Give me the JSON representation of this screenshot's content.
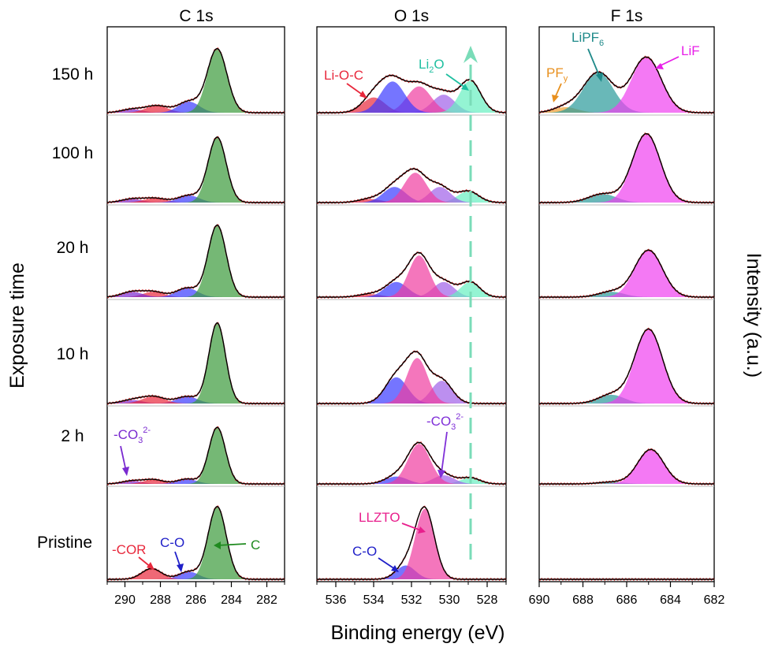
{
  "figure": {
    "xlabel": "Binding energy (eV)",
    "ylabel": "Exposure time",
    "right_label": "Intensity (a.u.)",
    "rows": [
      "150 h",
      "100 h",
      "20 h",
      "10 h",
      "2 h",
      "Pristine"
    ]
  },
  "chart_data": [
    {
      "type": "area",
      "title": "C 1s",
      "xlabel": "Binding energy (eV)",
      "xlim": [
        291,
        281
      ],
      "xticks": [
        290,
        288,
        286,
        284,
        282
      ],
      "components": [
        {
          "name": "C",
          "color": "#3a9a3a"
        },
        {
          "name": "C-O",
          "color": "#3a3aff"
        },
        {
          "name": "-COR",
          "color": "#e8283c"
        },
        {
          "name": "-CO3 2-",
          "color": "#7a2ad0"
        }
      ],
      "series": [
        {
          "name": "150 h",
          "peaks": [
            {
              "component": "C",
              "center": 284.8,
              "fwhm": 1.3,
              "height": 0.92
            },
            {
              "component": "C-O",
              "center": 286.4,
              "fwhm": 1.4,
              "height": 0.16
            },
            {
              "component": "-COR",
              "center": 288.2,
              "fwhm": 1.5,
              "height": 0.1
            },
            {
              "component": "-CO3 2-",
              "center": 289.6,
              "fwhm": 1.4,
              "height": 0.05
            }
          ]
        },
        {
          "name": "100 h",
          "peaks": [
            {
              "component": "C",
              "center": 284.8,
              "fwhm": 1.2,
              "height": 0.92
            },
            {
              "component": "C-O",
              "center": 286.4,
              "fwhm": 1.4,
              "height": 0.1
            },
            {
              "component": "-COR",
              "center": 288.3,
              "fwhm": 1.5,
              "height": 0.06
            },
            {
              "component": "-CO3 2-",
              "center": 289.6,
              "fwhm": 1.4,
              "height": 0.05
            }
          ]
        },
        {
          "name": "20 h",
          "peaks": [
            {
              "component": "C",
              "center": 284.8,
              "fwhm": 1.2,
              "height": 0.95
            },
            {
              "component": "C-O",
              "center": 286.5,
              "fwhm": 1.4,
              "height": 0.12
            },
            {
              "component": "-COR",
              "center": 288.4,
              "fwhm": 1.4,
              "height": 0.07
            },
            {
              "component": "-CO3 2-",
              "center": 289.6,
              "fwhm": 1.4,
              "height": 0.07
            }
          ]
        },
        {
          "name": "10 h",
          "peaks": [
            {
              "component": "C",
              "center": 284.8,
              "fwhm": 1.1,
              "height": 0.92
            },
            {
              "component": "C-O",
              "center": 286.5,
              "fwhm": 1.4,
              "height": 0.08
            },
            {
              "component": "-COR",
              "center": 288.4,
              "fwhm": 1.5,
              "height": 0.08
            },
            {
              "component": "-CO3 2-",
              "center": 289.6,
              "fwhm": 1.4,
              "height": 0.04
            }
          ]
        },
        {
          "name": "2 h",
          "peaks": [
            {
              "component": "C",
              "center": 284.8,
              "fwhm": 1.1,
              "height": 0.92
            },
            {
              "component": "C-O",
              "center": 286.5,
              "fwhm": 1.3,
              "height": 0.08
            },
            {
              "component": "-COR",
              "center": 288.4,
              "fwhm": 1.3,
              "height": 0.07
            },
            {
              "component": "-CO3 2-",
              "center": 289.6,
              "fwhm": 1.3,
              "height": 0.05
            }
          ]
        },
        {
          "name": "Pristine",
          "peaks": [
            {
              "component": "C",
              "center": 284.8,
              "fwhm": 1.2,
              "height": 0.95
            },
            {
              "component": "C-O",
              "center": 286.4,
              "fwhm": 1.3,
              "height": 0.1
            },
            {
              "component": "-COR",
              "center": 288.5,
              "fwhm": 1.3,
              "height": 0.14
            }
          ]
        }
      ],
      "annotations": [
        {
          "text": "-CO",
          "sub": "3",
          "sup": "2-",
          "row": "2 h",
          "color": "#7a2ad0"
        },
        {
          "text": "-COR",
          "row": "Pristine",
          "color": "#e8283c"
        },
        {
          "text": "C-O",
          "row": "Pristine",
          "color": "#1f1fc8"
        },
        {
          "text": "C",
          "row": "Pristine",
          "color": "#1f8a1f"
        }
      ]
    },
    {
      "type": "area",
      "title": "O 1s",
      "xlabel": "Binding energy (eV)",
      "xlim": [
        537,
        527
      ],
      "xticks": [
        536,
        534,
        532,
        530,
        528
      ],
      "dashed_marker": 528.9,
      "components": [
        {
          "name": "Li-O-C",
          "color": "#e8283c"
        },
        {
          "name": "C-O",
          "color": "#3a3aff"
        },
        {
          "name": "LLZTO",
          "color": "#f03ca0"
        },
        {
          "name": "-CO3 2-",
          "color": "#a060e8"
        },
        {
          "name": "Li2O",
          "color": "#66f0c0"
        }
      ],
      "series": [
        {
          "name": "150 h",
          "peaks": [
            {
              "component": "Li-O-C",
              "center": 534.0,
              "fwhm": 1.4,
              "height": 0.22
            },
            {
              "component": "C-O",
              "center": 533.0,
              "fwhm": 1.5,
              "height": 0.45
            },
            {
              "component": "LLZTO",
              "center": 531.6,
              "fwhm": 1.5,
              "height": 0.38
            },
            {
              "component": "-CO3 2-",
              "center": 530.3,
              "fwhm": 1.4,
              "height": 0.26
            },
            {
              "component": "Li2O",
              "center": 528.9,
              "fwhm": 1.3,
              "height": 0.46
            }
          ]
        },
        {
          "name": "100 h",
          "peaks": [
            {
              "component": "Li-O-C",
              "center": 534.2,
              "fwhm": 1.4,
              "height": 0.05
            },
            {
              "component": "C-O",
              "center": 532.9,
              "fwhm": 1.4,
              "height": 0.22
            },
            {
              "component": "LLZTO",
              "center": 531.8,
              "fwhm": 1.4,
              "height": 0.42
            },
            {
              "component": "-CO3 2-",
              "center": 530.5,
              "fwhm": 1.3,
              "height": 0.22
            },
            {
              "component": "Li2O",
              "center": 529.0,
              "fwhm": 1.3,
              "height": 0.16
            }
          ]
        },
        {
          "name": "20 h",
          "peaks": [
            {
              "component": "Li-O-C",
              "center": 534.2,
              "fwhm": 1.4,
              "height": 0.04
            },
            {
              "component": "C-O",
              "center": 532.8,
              "fwhm": 1.4,
              "height": 0.2
            },
            {
              "component": "LLZTO",
              "center": 531.6,
              "fwhm": 1.3,
              "height": 0.55
            },
            {
              "component": "-CO3 2-",
              "center": 530.3,
              "fwhm": 1.3,
              "height": 0.2
            },
            {
              "component": "Li2O",
              "center": 528.9,
              "fwhm": 1.2,
              "height": 0.2
            }
          ]
        },
        {
          "name": "10 h",
          "peaks": [
            {
              "component": "C-O",
              "center": 532.8,
              "fwhm": 1.4,
              "height": 0.3
            },
            {
              "component": "LLZTO",
              "center": 531.7,
              "fwhm": 1.3,
              "height": 0.52
            },
            {
              "component": "-CO3 2-",
              "center": 530.4,
              "fwhm": 1.3,
              "height": 0.26
            }
          ]
        },
        {
          "name": "2 h",
          "peaks": [
            {
              "component": "C-O",
              "center": 532.8,
              "fwhm": 1.4,
              "height": 0.12
            },
            {
              "component": "LLZTO",
              "center": 531.6,
              "fwhm": 1.4,
              "height": 0.65
            },
            {
              "component": "-CO3 2-",
              "center": 530.3,
              "fwhm": 1.3,
              "height": 0.14
            },
            {
              "component": "Li2O",
              "center": 528.9,
              "fwhm": 1.2,
              "height": 0.1
            }
          ]
        },
        {
          "name": "Pristine",
          "peaks": [
            {
              "component": "C-O",
              "center": 532.3,
              "fwhm": 1.2,
              "height": 0.18
            },
            {
              "component": "LLZTO",
              "center": 531.3,
              "fwhm": 1.2,
              "height": 0.92
            }
          ]
        }
      ],
      "annotations": [
        {
          "text": "Li-O-C",
          "row": "150 h",
          "color": "#e8283c"
        },
        {
          "text": "Li",
          "sub": "2",
          "tail": "O",
          "row": "150 h",
          "color": "#1fbfa0"
        },
        {
          "text": "-CO",
          "sub": "3",
          "sup": "2-",
          "row": "2 h",
          "color": "#8030d8"
        },
        {
          "text": "LLZTO",
          "row": "Pristine",
          "color": "#e81e8c"
        },
        {
          "text": "C-O",
          "row": "Pristine",
          "color": "#1f1fc8"
        }
      ]
    },
    {
      "type": "area",
      "title": "F 1s",
      "xlabel": "Binding energy (eV)",
      "xlim": [
        690,
        682
      ],
      "xticks": [
        690,
        688,
        686,
        684,
        682
      ],
      "components": [
        {
          "name": "LiF",
          "color": "#f040f0"
        },
        {
          "name": "LiPF6",
          "color": "#2a9a9a"
        },
        {
          "name": "PFy",
          "color": "#f0a030"
        }
      ],
      "series": [
        {
          "name": "150 h",
          "peaks": [
            {
              "component": "LiF",
              "center": 685.1,
              "fwhm": 1.6,
              "height": 0.8
            },
            {
              "component": "LiPF6",
              "center": 687.3,
              "fwhm": 1.6,
              "height": 0.58
            },
            {
              "component": "PFy",
              "center": 688.8,
              "fwhm": 1.3,
              "height": 0.08
            }
          ]
        },
        {
          "name": "100 h",
          "peaks": [
            {
              "component": "LiF",
              "center": 685.1,
              "fwhm": 1.5,
              "height": 0.97
            },
            {
              "component": "LiPF6",
              "center": 687.1,
              "fwhm": 1.5,
              "height": 0.12
            }
          ]
        },
        {
          "name": "20 h",
          "peaks": [
            {
              "component": "LiF",
              "center": 685.0,
              "fwhm": 1.5,
              "height": 0.62
            },
            {
              "component": "LiPF6",
              "center": 686.7,
              "fwhm": 1.4,
              "height": 0.07
            }
          ]
        },
        {
          "name": "10 h",
          "peaks": [
            {
              "component": "LiF",
              "center": 685.0,
              "fwhm": 1.5,
              "height": 0.85
            },
            {
              "component": "LiPF6",
              "center": 686.7,
              "fwhm": 1.4,
              "height": 0.1
            }
          ]
        },
        {
          "name": "2 h",
          "peaks": [
            {
              "component": "LiF",
              "center": 684.9,
              "fwhm": 1.4,
              "height": 0.56
            },
            {
              "component": "LiPF6",
              "center": 686.7,
              "fwhm": 1.4,
              "height": 0.03
            }
          ]
        },
        {
          "name": "Pristine",
          "peaks": []
        }
      ],
      "annotations": [
        {
          "text": "LiF",
          "row": "150 h",
          "color": "#e81ee8"
        },
        {
          "text": "LiPF",
          "sub": "6",
          "row": "150 h",
          "color": "#1f8a8a"
        },
        {
          "text": "PF",
          "sub": "y",
          "row": "150 h",
          "color": "#e8901e"
        }
      ]
    }
  ]
}
